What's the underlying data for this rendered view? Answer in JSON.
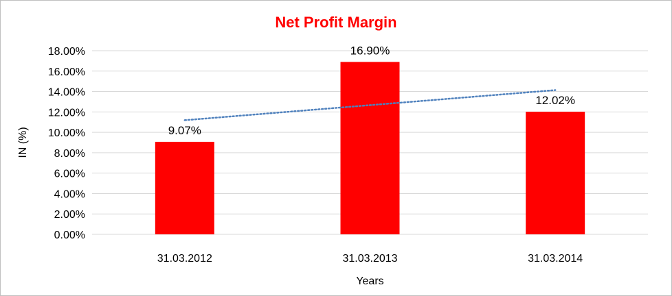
{
  "chart_data": {
    "type": "bar",
    "title": "Net Profit Margin",
    "xlabel": "Years",
    "ylabel": "IN (%)",
    "categories": [
      "31.03.2012",
      "31.03.2013",
      "31.03.2014"
    ],
    "values": [
      9.07,
      16.9,
      12.02
    ],
    "data_labels": [
      "9.07%",
      "16.90%",
      "12.02%"
    ],
    "ylim": [
      0,
      18
    ],
    "y_ticks": [
      0,
      2,
      4,
      6,
      8,
      10,
      12,
      14,
      16,
      18
    ],
    "y_tick_labels": [
      "0.00%",
      "2.00%",
      "4.00%",
      "6.00%",
      "8.00%",
      "10.00%",
      "12.00%",
      "14.00%",
      "16.00%",
      "18.00%"
    ],
    "grid": true,
    "legend": "none",
    "trendline": {
      "type": "linear",
      "style": "dotted"
    },
    "colors": {
      "title": "#ff0000",
      "bar": "#ff0000",
      "trendline": "#4f81bd",
      "grid": "#d9d9d9"
    }
  }
}
